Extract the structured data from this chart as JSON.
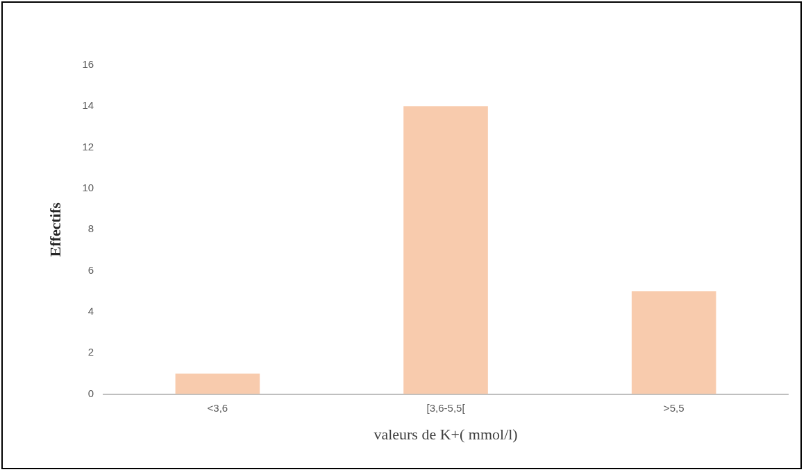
{
  "chart_data": {
    "type": "bar",
    "xlabel": "valeurs de K+( mmol/l)",
    "ylabel": "Effectifs",
    "categories": [
      "<3,6",
      "[3,6-5,5[",
      ">5,5"
    ],
    "values": [
      1,
      14,
      5
    ],
    "color": "#f8cbad",
    "ylim": [
      0,
      16
    ],
    "yticks": [
      0,
      2,
      4,
      6,
      8,
      10,
      12,
      14,
      16
    ],
    "grid": false,
    "legend": false
  }
}
